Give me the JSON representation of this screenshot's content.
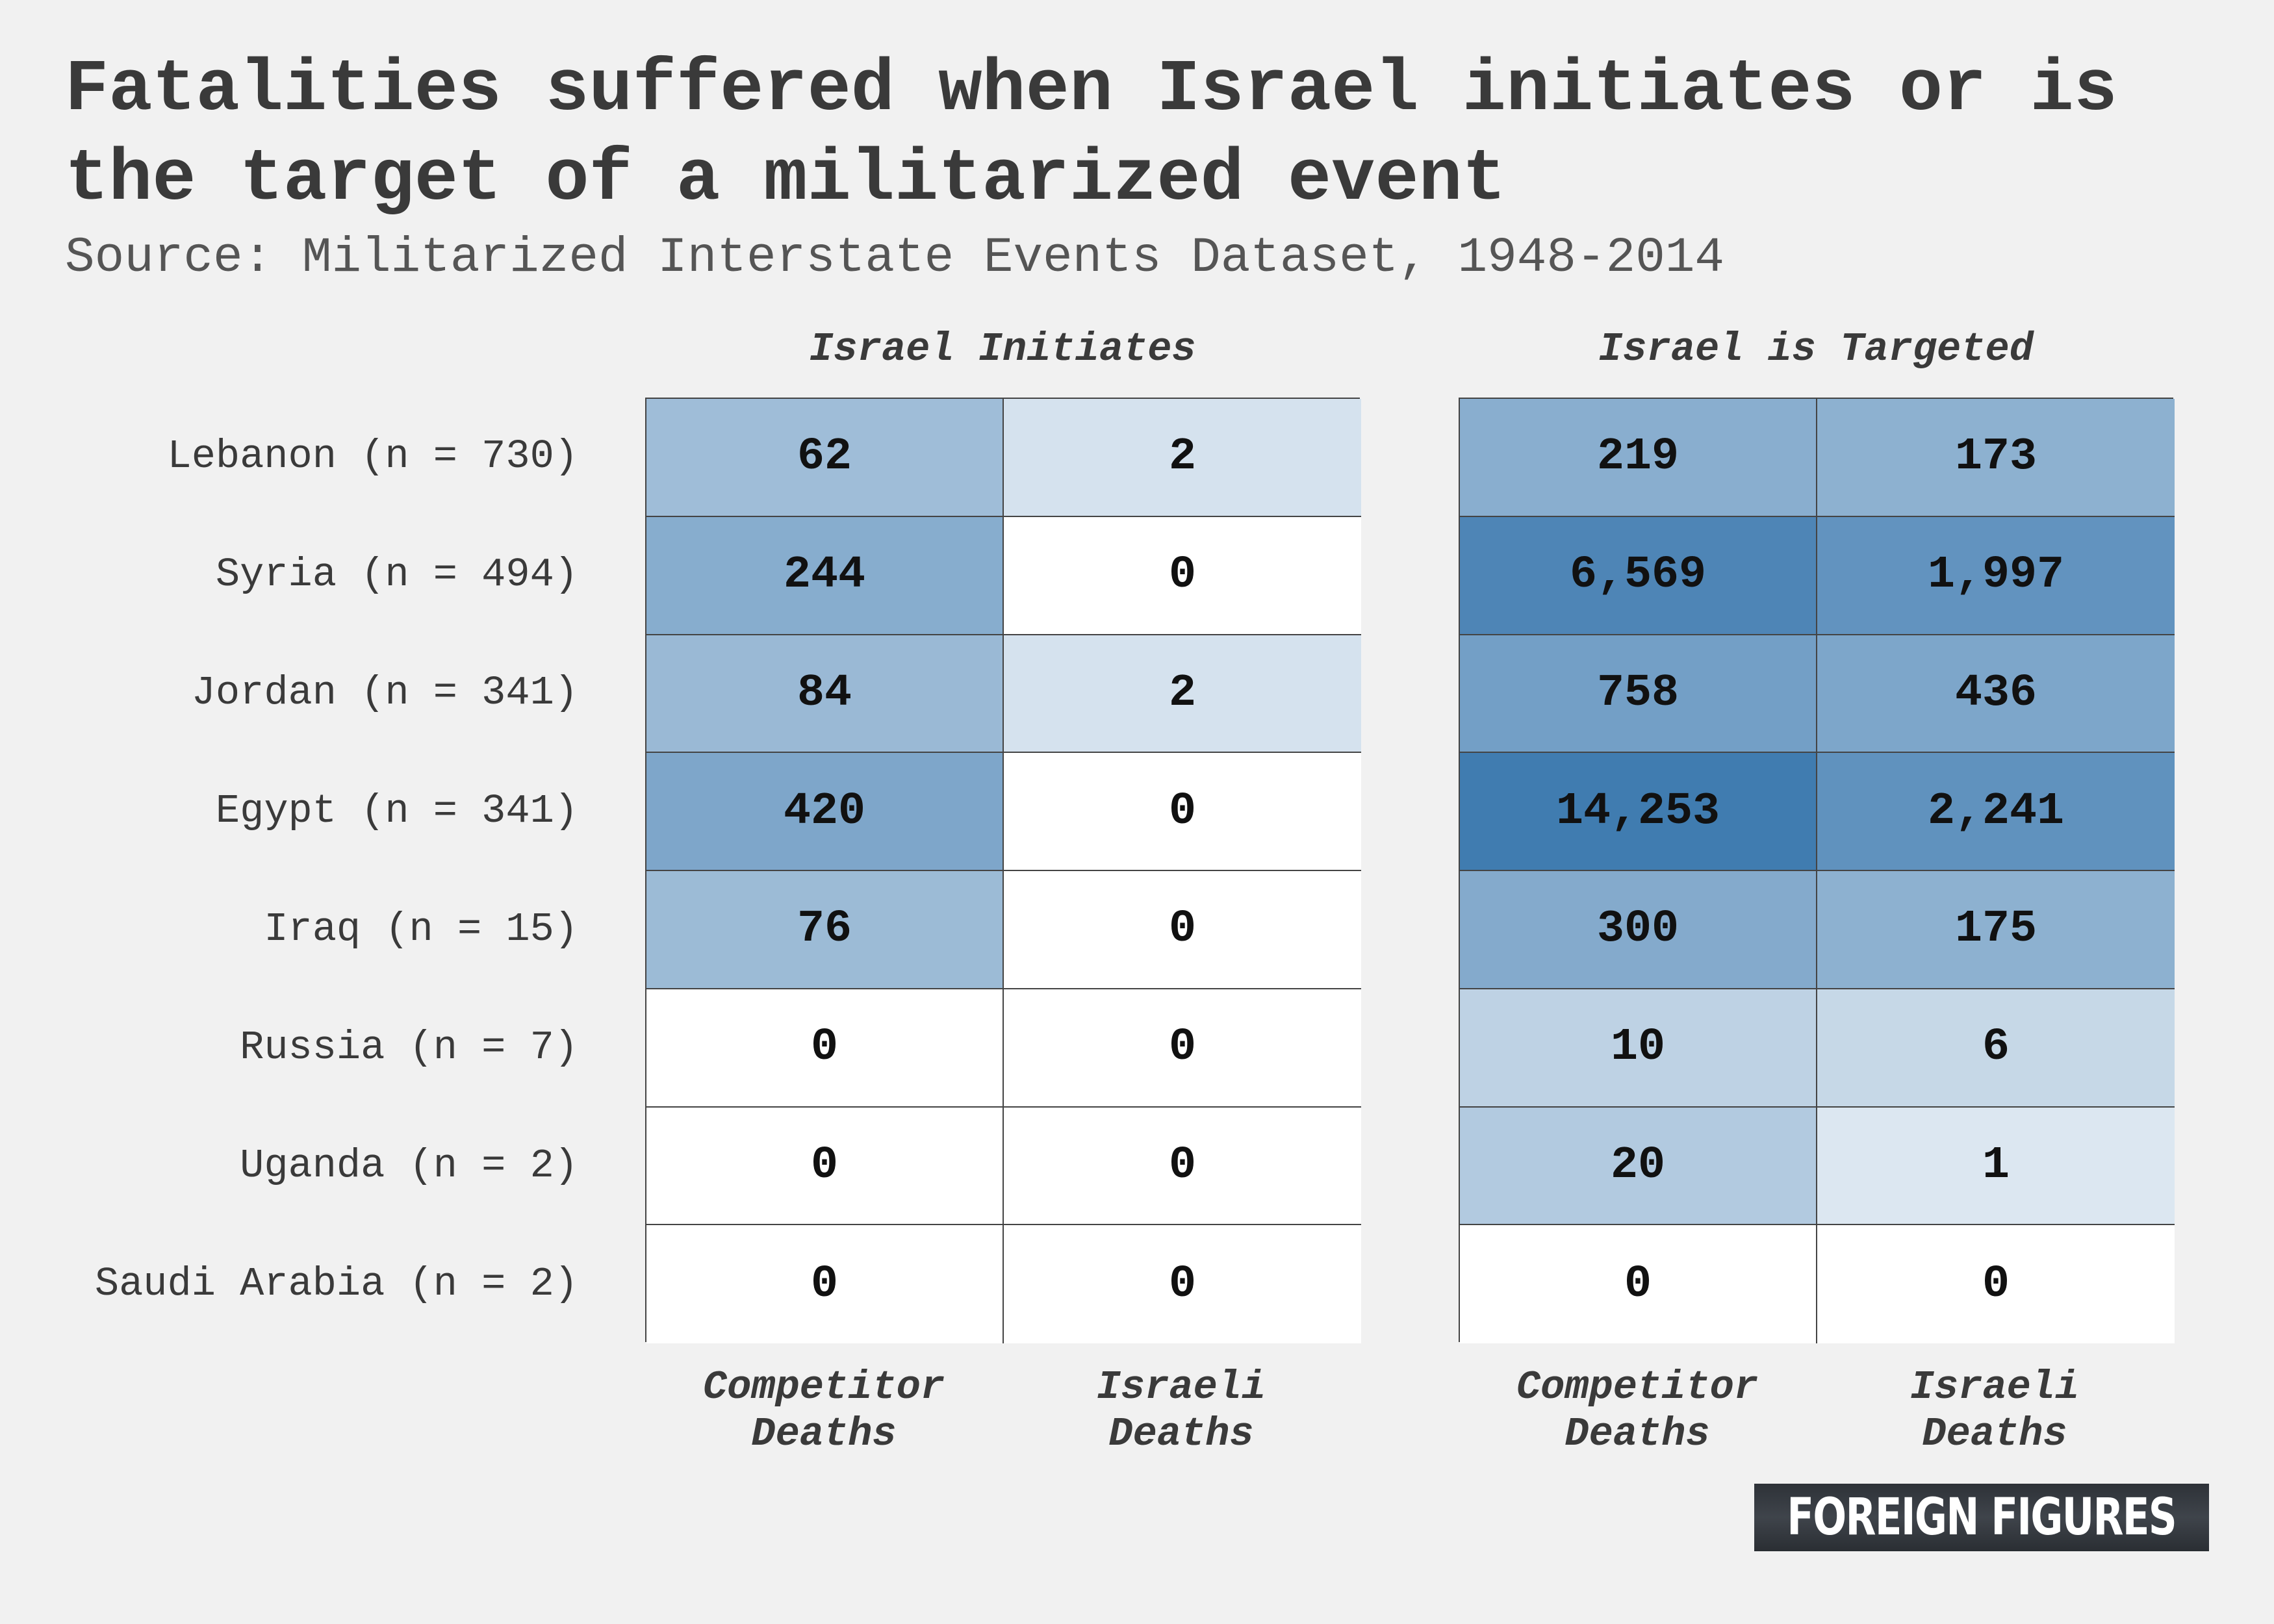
{
  "chart_data": {
    "type": "table",
    "title": "Fatalities suffered when Israel initiates or is the target of a militarized event",
    "subtitle": "Source: Militarized Interstate Events Dataset, 1948-2014",
    "panels": [
      "Israel Initiates",
      "Israel is Targeted"
    ],
    "columns": [
      "Competitor\nDeaths",
      "Israeli\nDeaths"
    ],
    "rows": [
      "Lebanon (n = 730)",
      "Syria (n = 494)",
      "Jordan (n = 341)",
      "Egypt (n = 341)",
      "Iraq (n = 15)",
      "Russia (n = 7)",
      "Uganda (n = 2)",
      "Saudi Arabia (n = 2)"
    ],
    "values": {
      "initiates": [
        [
          62,
          2
        ],
        [
          244,
          0
        ],
        [
          84,
          2
        ],
        [
          420,
          0
        ],
        [
          76,
          0
        ],
        [
          0,
          0
        ],
        [
          0,
          0
        ],
        [
          0,
          0
        ]
      ],
      "targeted": [
        [
          219,
          173
        ],
        [
          6569,
          1997
        ],
        [
          758,
          436
        ],
        [
          14253,
          2241
        ],
        [
          300,
          175
        ],
        [
          10,
          6
        ],
        [
          20,
          1
        ],
        [
          0,
          0
        ]
      ]
    },
    "color_scale": {
      "low": "#ffffff",
      "high": "#3f7bb0"
    }
  },
  "brand": {
    "label": "FOREIGN FIGURES"
  }
}
